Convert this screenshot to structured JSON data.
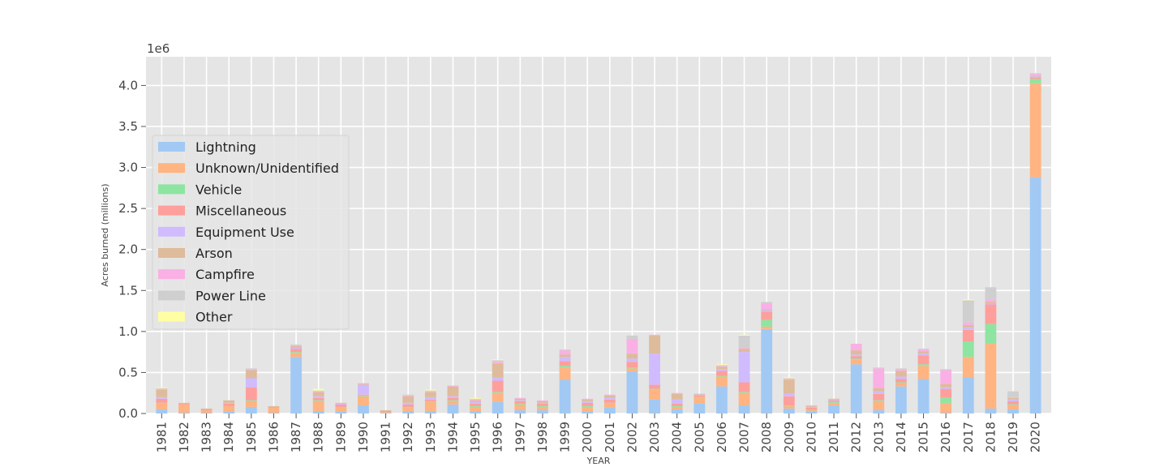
{
  "chart_data": {
    "type": "bar",
    "stacked": true,
    "xlabel": "YEAR",
    "ylabel": "Acres burned (millions)",
    "offset_text": "1e6",
    "ylim": [
      0,
      4350000
    ],
    "yticks": [
      0,
      500000,
      1000000,
      1500000,
      2000000,
      2500000,
      3000000,
      3500000,
      4000000
    ],
    "ytick_labels": [
      "0.0",
      "0.5",
      "1.0",
      "1.5",
      "2.0",
      "2.5",
      "3.0",
      "3.5",
      "4.0"
    ],
    "grid": true,
    "legend_position": "upper-left",
    "categories": [
      "1981",
      "1982",
      "1983",
      "1984",
      "1985",
      "1986",
      "1987",
      "1988",
      "1989",
      "1990",
      "1991",
      "1992",
      "1993",
      "1994",
      "1995",
      "1996",
      "1997",
      "1998",
      "1999",
      "2000",
      "2001",
      "2002",
      "2003",
      "2004",
      "2005",
      "2006",
      "2007",
      "2008",
      "2009",
      "2010",
      "2011",
      "2012",
      "2013",
      "2014",
      "2015",
      "2016",
      "2017",
      "2018",
      "2019",
      "2020"
    ],
    "series": [
      {
        "name": "Lightning",
        "color": "#a1c9f4",
        "values": [
          50000,
          10000,
          10000,
          20000,
          80000,
          10000,
          690000,
          30000,
          20000,
          100000,
          10000,
          30000,
          30000,
          110000,
          30000,
          140000,
          40000,
          40000,
          410000,
          20000,
          70000,
          510000,
          170000,
          50000,
          120000,
          330000,
          100000,
          1030000,
          60000,
          20000,
          100000,
          600000,
          40000,
          330000,
          420000,
          10000,
          440000,
          60000,
          50000,
          2880000
        ]
      },
      {
        "name": "Unknown/Unidentified",
        "color": "#ffb482",
        "values": [
          70000,
          100000,
          30000,
          70000,
          70000,
          60000,
          50000,
          120000,
          60000,
          110000,
          10000,
          40000,
          110000,
          40000,
          50000,
          110000,
          70000,
          40000,
          150000,
          60000,
          50000,
          40000,
          120000,
          30000,
          70000,
          120000,
          150000,
          30000,
          30000,
          20000,
          30000,
          60000,
          110000,
          40000,
          160000,
          120000,
          250000,
          800000,
          50000,
          1150000
        ]
      },
      {
        "name": "Vehicle",
        "color": "#8de5a1",
        "values": [
          10000,
          0,
          0,
          0,
          10000,
          0,
          10000,
          10000,
          0,
          10000,
          0,
          10000,
          10000,
          10000,
          10000,
          10000,
          10000,
          10000,
          20000,
          10000,
          10000,
          10000,
          10000,
          10000,
          10000,
          10000,
          10000,
          80000,
          10000,
          10000,
          10000,
          10000,
          10000,
          10000,
          20000,
          60000,
          190000,
          230000,
          10000,
          50000
        ]
      },
      {
        "name": "Miscellaneous",
        "color": "#ff9f9b",
        "values": [
          50000,
          10000,
          10000,
          30000,
          160000,
          10000,
          40000,
          30000,
          30000,
          10000,
          10000,
          30000,
          20000,
          30000,
          30000,
          140000,
          30000,
          30000,
          60000,
          40000,
          40000,
          70000,
          50000,
          30000,
          20000,
          60000,
          120000,
          100000,
          110000,
          20000,
          20000,
          30000,
          80000,
          40000,
          110000,
          110000,
          140000,
          240000,
          40000,
          20000
        ]
      },
      {
        "name": "Equipment Use",
        "color": "#d0bbff",
        "values": [
          20000,
          0,
          0,
          10000,
          110000,
          0,
          10000,
          20000,
          10000,
          120000,
          0,
          20000,
          30000,
          20000,
          20000,
          40000,
          10000,
          10000,
          50000,
          20000,
          20000,
          40000,
          380000,
          50000,
          10000,
          20000,
          370000,
          20000,
          30000,
          10000,
          10000,
          20000,
          30000,
          30000,
          20000,
          20000,
          30000,
          10000,
          20000,
          10000
        ]
      },
      {
        "name": "Arson",
        "color": "#debb9b",
        "values": [
          90000,
          10000,
          10000,
          30000,
          100000,
          10000,
          20000,
          50000,
          10000,
          10000,
          10000,
          80000,
          60000,
          120000,
          20000,
          170000,
          20000,
          20000,
          30000,
          20000,
          30000,
          60000,
          220000,
          70000,
          10000,
          30000,
          40000,
          10000,
          170000,
          10000,
          10000,
          50000,
          40000,
          70000,
          30000,
          40000,
          30000,
          20000,
          20000,
          10000
        ]
      },
      {
        "name": "Campfire",
        "color": "#fab0e4",
        "values": [
          10000,
          0,
          0,
          0,
          10000,
          0,
          10000,
          10000,
          0,
          10000,
          0,
          10000,
          10000,
          10000,
          10000,
          20000,
          10000,
          10000,
          50000,
          10000,
          10000,
          180000,
          10000,
          10000,
          0,
          10000,
          10000,
          70000,
          10000,
          10000,
          0,
          80000,
          240000,
          20000,
          20000,
          170000,
          30000,
          30000,
          10000,
          20000
        ]
      },
      {
        "name": "Power Line",
        "color": "#cfcfcf",
        "values": [
          10000,
          0,
          0,
          0,
          10000,
          0,
          10000,
          10000,
          0,
          0,
          0,
          10000,
          10000,
          0,
          10000,
          20000,
          0,
          0,
          10000,
          0,
          0,
          40000,
          0,
          0,
          0,
          10000,
          150000,
          20000,
          10000,
          0,
          0,
          0,
          10000,
          10000,
          10000,
          10000,
          270000,
          150000,
          70000,
          10000
        ]
      },
      {
        "name": "Other",
        "color": "#fffea3",
        "values": [
          10000,
          0,
          0,
          0,
          0,
          0,
          0,
          20000,
          0,
          0,
          0,
          0,
          10000,
          0,
          10000,
          10000,
          0,
          0,
          0,
          0,
          0,
          0,
          0,
          0,
          0,
          10000,
          10000,
          0,
          10000,
          0,
          0,
          0,
          0,
          0,
          0,
          0,
          10000,
          0,
          0,
          0
        ]
      }
    ]
  }
}
